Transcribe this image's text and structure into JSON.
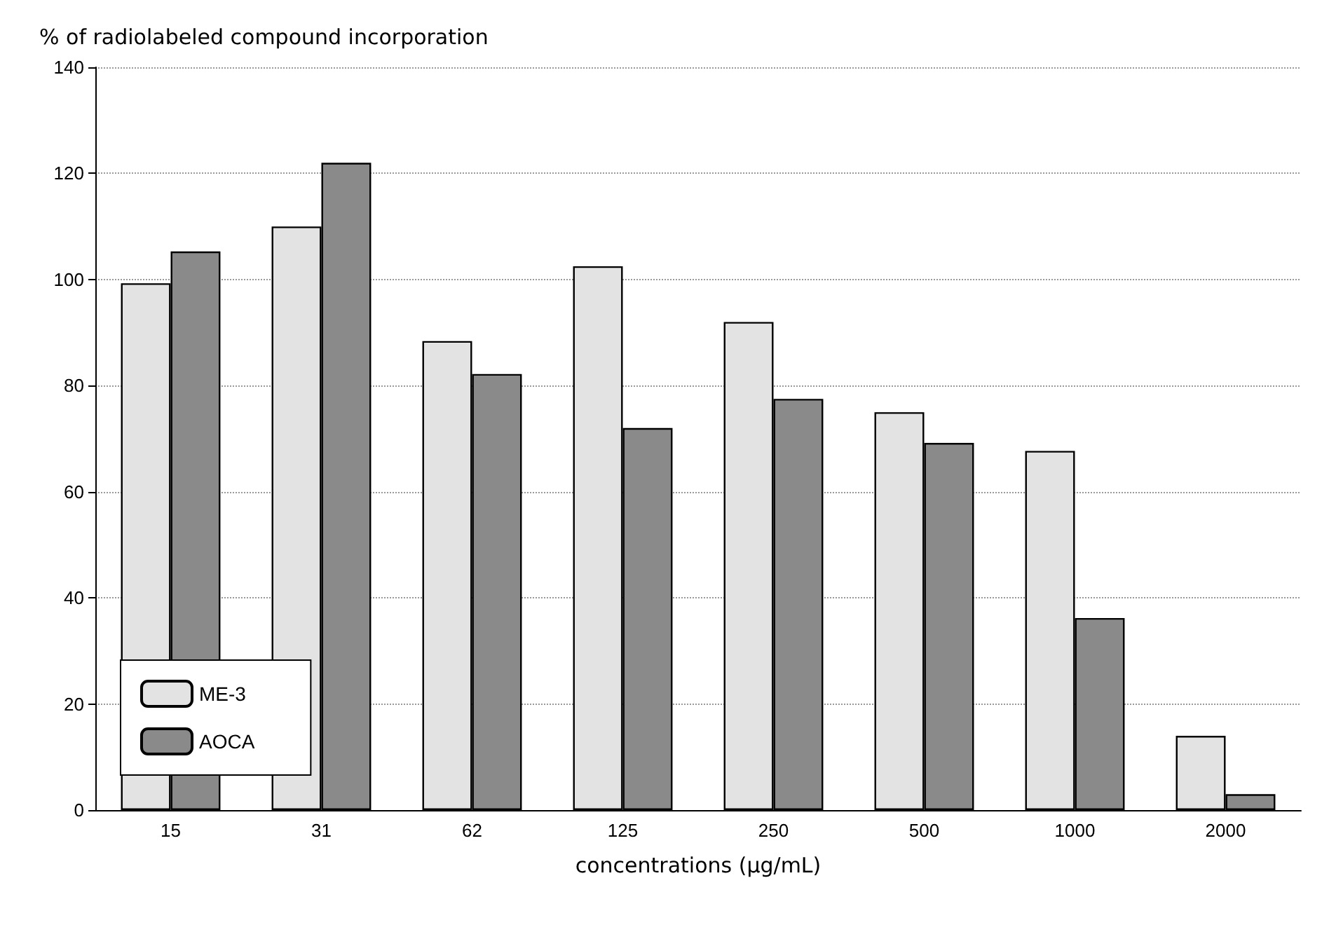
{
  "chart_data": {
    "type": "bar",
    "ylabel": "% of radiolabeled compound incorporation",
    "xlabel": "concentrations (µg/mL)",
    "categories": [
      "15",
      "31",
      "62",
      "125",
      "250",
      "500",
      "1000",
      "2000"
    ],
    "series": [
      {
        "name": "ME-3",
        "color": "#e3e3e3",
        "values": [
          99.3,
          110,
          88.4,
          102.5,
          92,
          75,
          67.7,
          14
        ]
      },
      {
        "name": "AOCA",
        "color": "#8a8a8a",
        "values": [
          105.3,
          122,
          82.2,
          72,
          77.5,
          69.2,
          36.2,
          3
        ]
      }
    ],
    "ylim": [
      0,
      140
    ],
    "yticks": [
      0,
      20,
      40,
      60,
      80,
      100,
      120,
      140
    ],
    "grid": "y",
    "legend": "bottom left"
  }
}
